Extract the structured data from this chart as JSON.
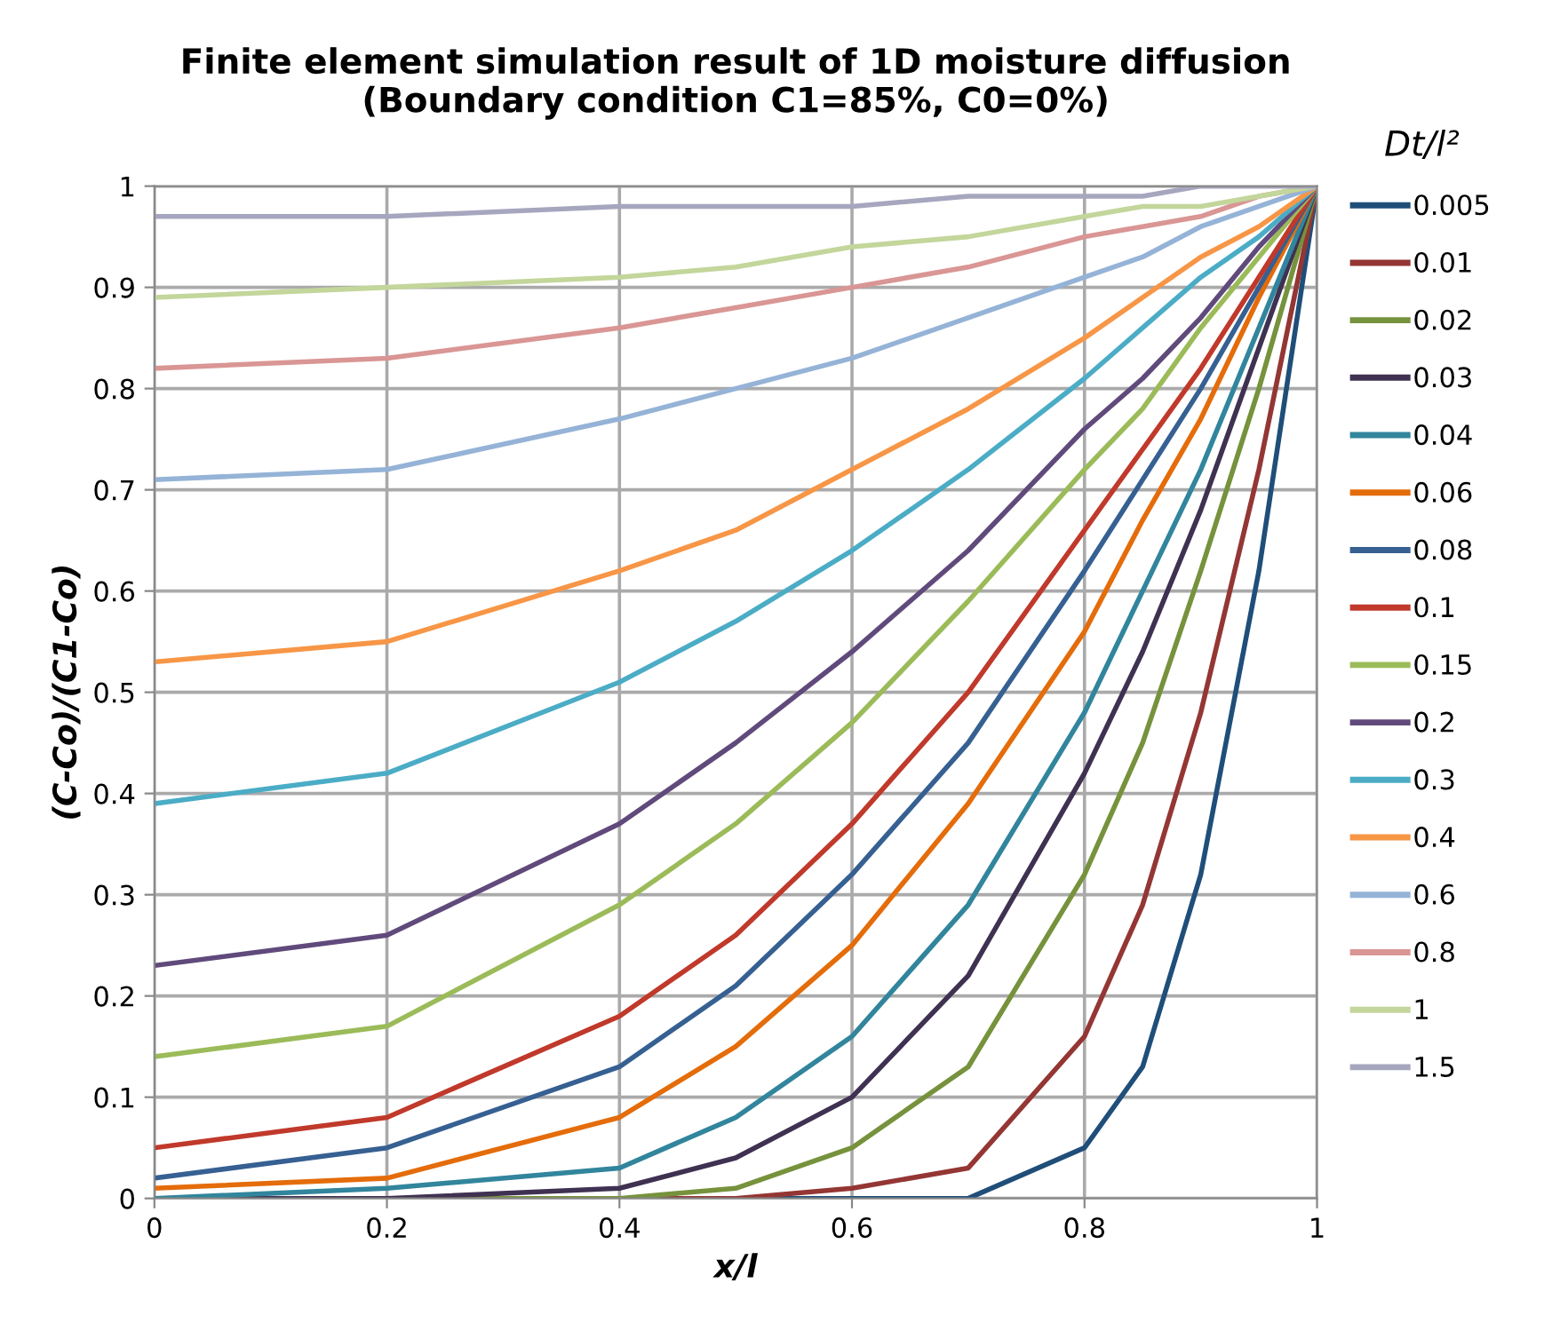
{
  "chart_data": {
    "type": "line",
    "title": "Finite element simulation result of 1D moisture diffusion\n(Boundary condition C1=85%, C0=0%)",
    "xlabel": "x/l",
    "ylabel": "(C-Co)/(C1-Co)",
    "legend_title": "Dt/l²",
    "x": [
      0,
      0.2,
      0.4,
      0.5,
      0.6,
      0.7,
      0.8,
      0.85,
      0.9,
      0.95,
      1
    ],
    "series": [
      {
        "name": "0.005",
        "color": "#1f4e79",
        "values": [
          0,
          0,
          0,
          0,
          0,
          0,
          0.05,
          0.13,
          0.32,
          0.62,
          1
        ]
      },
      {
        "name": "0.01",
        "color": "#943634",
        "values": [
          0,
          0,
          0,
          0,
          0.01,
          0.03,
          0.16,
          0.29,
          0.48,
          0.72,
          1
        ]
      },
      {
        "name": "0.02",
        "color": "#76923c",
        "values": [
          0,
          0,
          0,
          0.01,
          0.05,
          0.13,
          0.32,
          0.45,
          0.62,
          0.8,
          1
        ]
      },
      {
        "name": "0.03",
        "color": "#3f3151",
        "values": [
          0,
          0,
          0.01,
          0.04,
          0.1,
          0.22,
          0.42,
          0.54,
          0.68,
          0.84,
          1
        ]
      },
      {
        "name": "0.04",
        "color": "#31859c",
        "values": [
          0,
          0.01,
          0.03,
          0.08,
          0.16,
          0.29,
          0.48,
          0.6,
          0.72,
          0.86,
          1
        ]
      },
      {
        "name": "0.06",
        "color": "#e46c0a",
        "values": [
          0.01,
          0.02,
          0.08,
          0.15,
          0.25,
          0.39,
          0.56,
          0.67,
          0.77,
          0.89,
          1
        ]
      },
      {
        "name": "0.08",
        "color": "#366092",
        "values": [
          0.02,
          0.05,
          0.13,
          0.21,
          0.32,
          0.45,
          0.62,
          0.71,
          0.8,
          0.9,
          1
        ]
      },
      {
        "name": "0.1",
        "color": "#c0392b",
        "values": [
          0.05,
          0.08,
          0.18,
          0.26,
          0.37,
          0.5,
          0.66,
          0.74,
          0.82,
          0.91,
          1
        ]
      },
      {
        "name": "0.15",
        "color": "#9bbb59",
        "values": [
          0.14,
          0.17,
          0.29,
          0.37,
          0.47,
          0.59,
          0.72,
          0.78,
          0.86,
          0.93,
          1
        ]
      },
      {
        "name": "0.2",
        "color": "#604a7b",
        "values": [
          0.23,
          0.26,
          0.37,
          0.45,
          0.54,
          0.64,
          0.76,
          0.81,
          0.87,
          0.94,
          1
        ]
      },
      {
        "name": "0.3",
        "color": "#4bacc6",
        "values": [
          0.39,
          0.42,
          0.51,
          0.57,
          0.64,
          0.72,
          0.81,
          0.86,
          0.91,
          0.95,
          1
        ]
      },
      {
        "name": "0.4",
        "color": "#f79646",
        "values": [
          0.53,
          0.55,
          0.62,
          0.66,
          0.72,
          0.78,
          0.85,
          0.89,
          0.93,
          0.96,
          1
        ]
      },
      {
        "name": "0.6",
        "color": "#95b3d7",
        "values": [
          0.71,
          0.72,
          0.77,
          0.8,
          0.83,
          0.87,
          0.91,
          0.93,
          0.96,
          0.98,
          1
        ]
      },
      {
        "name": "0.8",
        "color": "#d99694",
        "values": [
          0.82,
          0.83,
          0.86,
          0.88,
          0.9,
          0.92,
          0.95,
          0.96,
          0.97,
          0.99,
          1
        ]
      },
      {
        "name": "1",
        "color": "#c3d69b",
        "values": [
          0.89,
          0.9,
          0.91,
          0.92,
          0.94,
          0.95,
          0.97,
          0.98,
          0.98,
          0.99,
          1
        ]
      },
      {
        "name": "1.5",
        "color": "#a6a6bf",
        "values": [
          0.97,
          0.97,
          0.98,
          0.98,
          0.98,
          0.99,
          0.99,
          0.99,
          1,
          1,
          1
        ]
      }
    ],
    "xlim": [
      0,
      1
    ],
    "xticks": [
      0,
      0.2,
      0.4,
      0.6,
      0.8,
      1
    ],
    "ylim": [
      0,
      1
    ],
    "yticks": [
      0,
      0.1,
      0.2,
      0.3,
      0.4,
      0.5,
      0.6,
      0.7,
      0.8,
      0.9,
      1
    ],
    "grid": true,
    "legend": "right",
    "marker": "none",
    "line_style": "solid"
  }
}
